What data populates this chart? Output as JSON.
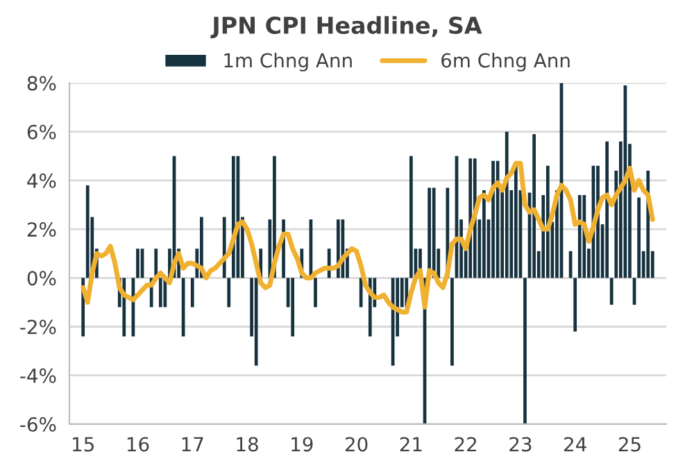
{
  "chart_data": {
    "type": "bar",
    "title": "JPN CPI Headline, SA",
    "x": [
      "2015-01",
      "2015-02",
      "2015-03",
      "2015-04",
      "2015-05",
      "2015-06",
      "2015-07",
      "2015-08",
      "2015-09",
      "2015-10",
      "2015-11",
      "2015-12",
      "2016-01",
      "2016-02",
      "2016-03",
      "2016-04",
      "2016-05",
      "2016-06",
      "2016-07",
      "2016-08",
      "2016-09",
      "2016-10",
      "2016-11",
      "2016-12",
      "2017-01",
      "2017-02",
      "2017-03",
      "2017-04",
      "2017-05",
      "2017-06",
      "2017-07",
      "2017-08",
      "2017-09",
      "2017-10",
      "2017-11",
      "2017-12",
      "2018-01",
      "2018-02",
      "2018-03",
      "2018-04",
      "2018-05",
      "2018-06",
      "2018-07",
      "2018-08",
      "2018-09",
      "2018-10",
      "2018-11",
      "2018-12",
      "2019-01",
      "2019-02",
      "2019-03",
      "2019-04",
      "2019-05",
      "2019-06",
      "2019-07",
      "2019-08",
      "2019-09",
      "2019-10",
      "2019-11",
      "2019-12",
      "2020-01",
      "2020-02",
      "2020-03",
      "2020-04",
      "2020-05",
      "2020-06",
      "2020-07",
      "2020-08",
      "2020-09",
      "2020-10",
      "2020-11",
      "2020-12",
      "2021-01",
      "2021-02",
      "2021-03",
      "2021-04",
      "2021-05",
      "2021-06",
      "2021-07",
      "2021-08",
      "2021-09",
      "2021-10",
      "2021-11",
      "2021-12",
      "2022-01",
      "2022-02",
      "2022-03",
      "2022-04",
      "2022-05",
      "2022-06",
      "2022-07",
      "2022-08",
      "2022-09",
      "2022-10",
      "2022-11",
      "2022-12",
      "2023-01",
      "2023-02",
      "2023-03",
      "2023-04",
      "2023-05",
      "2023-06",
      "2023-07",
      "2023-08",
      "2023-09",
      "2023-10",
      "2023-11",
      "2023-12",
      "2024-01",
      "2024-02",
      "2024-03",
      "2024-04",
      "2024-05",
      "2024-06",
      "2024-07",
      "2024-08",
      "2024-09",
      "2024-10",
      "2024-11",
      "2024-12",
      "2025-01",
      "2025-02",
      "2025-03",
      "2025-04",
      "2025-05",
      "2025-06"
    ],
    "series": [
      {
        "name": "1m Chng Ann",
        "color": "#17323f",
        "values": [
          -2.4,
          3.8,
          2.5,
          1.2,
          null,
          null,
          null,
          null,
          -1.2,
          -2.4,
          null,
          -2.4,
          1.2,
          1.2,
          null,
          -1.2,
          1.2,
          -1.2,
          -1.2,
          1.2,
          5.0,
          1.2,
          -2.4,
          null,
          -1.2,
          1.2,
          2.5,
          null,
          null,
          null,
          null,
          2.5,
          -1.2,
          5.0,
          5.0,
          2.5,
          null,
          -2.4,
          -3.6,
          1.2,
          null,
          2.4,
          5.0,
          null,
          2.4,
          -1.2,
          -2.4,
          null,
          1.2,
          null,
          2.4,
          -1.2,
          null,
          null,
          1.2,
          null,
          2.4,
          2.4,
          1.2,
          null,
          null,
          -1.2,
          null,
          -2.4,
          -1.2,
          null,
          null,
          null,
          -3.6,
          -2.4,
          -1.2,
          -1.2,
          5.0,
          1.2,
          1.2,
          -6.0,
          3.7,
          3.7,
          1.2,
          null,
          3.7,
          -3.6,
          5.0,
          2.4,
          1.2,
          4.9,
          4.9,
          2.4,
          3.6,
          2.4,
          4.8,
          4.8,
          3.6,
          6.0,
          3.6,
          4.7,
          3.6,
          -6.0,
          3.5,
          5.9,
          1.1,
          3.4,
          4.6,
          2.3,
          3.6,
          8.0,
          null,
          1.1,
          -2.2,
          3.4,
          3.4,
          1.2,
          4.6,
          4.6,
          2.2,
          5.6,
          -1.1,
          4.4,
          5.6,
          7.9,
          5.5,
          -1.1,
          3.3,
          1.1,
          4.4,
          1.1
        ]
      },
      {
        "name": "6m Chng Ann",
        "type": "line",
        "color": "#f0b030",
        "values": [
          -0.4,
          -1.0,
          0.2,
          1.0,
          0.9,
          1.0,
          1.3,
          0.6,
          -0.4,
          -0.7,
          -0.8,
          -0.9,
          -0.7,
          -0.5,
          -0.3,
          -0.3,
          0.0,
          0.2,
          0.0,
          -0.2,
          0.6,
          1.0,
          0.4,
          0.6,
          0.6,
          0.5,
          0.4,
          0.0,
          0.3,
          0.4,
          0.6,
          0.8,
          1.0,
          1.6,
          2.2,
          2.3,
          2.0,
          1.4,
          0.6,
          -0.2,
          -0.4,
          -0.3,
          0.6,
          1.3,
          1.8,
          1.8,
          1.2,
          0.8,
          0.2,
          0.0,
          0.0,
          0.2,
          0.3,
          0.4,
          0.4,
          0.4,
          0.5,
          0.8,
          1.0,
          1.2,
          1.1,
          0.5,
          -0.3,
          -0.6,
          -0.8,
          -0.8,
          -0.7,
          -1.0,
          -1.2,
          -1.3,
          -1.4,
          -1.4,
          -0.6,
          0.0,
          0.3,
          -1.2,
          0.3,
          0.2,
          -0.2,
          -0.4,
          0.2,
          1.4,
          1.6,
          1.6,
          1.2,
          2.0,
          2.6,
          3.3,
          3.4,
          3.2,
          3.7,
          3.9,
          3.6,
          4.1,
          4.3,
          4.7,
          4.7,
          3.0,
          2.7,
          2.8,
          2.4,
          2.0,
          2.0,
          2.6,
          3.4,
          3.8,
          3.6,
          3.2,
          2.2,
          2.3,
          2.2,
          1.5,
          2.1,
          2.8,
          3.3,
          3.4,
          3.0,
          3.4,
          3.7,
          4.0,
          4.5,
          3.6,
          4.0,
          3.6,
          3.4,
          2.4
        ]
      }
    ],
    "xlim": [
      "2014-10",
      "2025-09"
    ],
    "xticks": [
      {
        "value": "2015-01",
        "label": "15"
      },
      {
        "value": "2016-01",
        "label": "16"
      },
      {
        "value": "2017-01",
        "label": "17"
      },
      {
        "value": "2018-01",
        "label": "18"
      },
      {
        "value": "2019-01",
        "label": "19"
      },
      {
        "value": "2020-01",
        "label": "20"
      },
      {
        "value": "2021-01",
        "label": "21"
      },
      {
        "value": "2022-01",
        "label": "22"
      },
      {
        "value": "2023-01",
        "label": "23"
      },
      {
        "value": "2024-01",
        "label": "24"
      },
      {
        "value": "2025-01",
        "label": "25"
      }
    ],
    "ylim": [
      -6,
      8
    ],
    "yticks": [
      {
        "value": -6,
        "label": "-6%"
      },
      {
        "value": -4,
        "label": "-4%"
      },
      {
        "value": -2,
        "label": "-2%"
      },
      {
        "value": 0,
        "label": "0%"
      },
      {
        "value": 2,
        "label": "2%"
      },
      {
        "value": 4,
        "label": "4%"
      },
      {
        "value": 6,
        "label": "6%"
      },
      {
        "value": 8,
        "label": "8%"
      }
    ],
    "grid": "y",
    "legend": "top"
  }
}
